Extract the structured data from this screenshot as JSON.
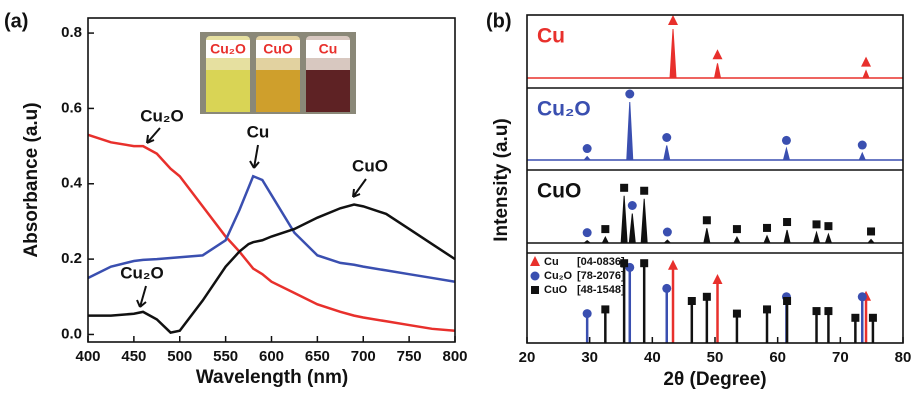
{
  "chart_data": [
    {
      "type": "line",
      "panel_label": "(a)",
      "xlabel": "Wavelength (nm)",
      "ylabel": "Absorbance (a.u)",
      "xlim": [
        400,
        800
      ],
      "xticks": [
        400,
        450,
        500,
        550,
        600,
        650,
        700,
        750,
        800
      ],
      "ylim": [
        -0.02,
        0.84
      ],
      "yticks": [
        {
          "value": 0,
          "label": "0.0"
        },
        {
          "value": 0.2,
          "label": "0.2"
        },
        {
          "value": 0.4,
          "label": "0.4"
        },
        {
          "value": 0.6,
          "label": "0.6"
        },
        {
          "value": 0.8,
          "label": "0.8"
        }
      ],
      "x": [
        400,
        425,
        450,
        460,
        475,
        490,
        500,
        525,
        550,
        565,
        575,
        580,
        590,
        600,
        625,
        650,
        675,
        690,
        700,
        725,
        750,
        775,
        800
      ],
      "series": [
        {
          "name": "Cu₂O",
          "color": "#e8302c",
          "values": [
            0.53,
            0.51,
            0.5,
            0.5,
            0.48,
            0.44,
            0.42,
            0.34,
            0.26,
            0.22,
            0.19,
            0.175,
            0.16,
            0.14,
            0.11,
            0.08,
            0.06,
            0.05,
            0.045,
            0.035,
            0.025,
            0.015,
            0.01
          ]
        },
        {
          "name": "Cu",
          "color": "#3a4fb0",
          "values": [
            0.15,
            0.18,
            0.195,
            0.198,
            0.2,
            0.203,
            0.205,
            0.21,
            0.25,
            0.33,
            0.39,
            0.42,
            0.41,
            0.37,
            0.27,
            0.21,
            0.19,
            0.185,
            0.18,
            0.17,
            0.16,
            0.15,
            0.14
          ]
        },
        {
          "name": "CuO",
          "color": "#111111",
          "values": [
            0.05,
            0.05,
            0.055,
            0.06,
            0.04,
            0.005,
            0.01,
            0.09,
            0.18,
            0.22,
            0.24,
            0.245,
            0.25,
            0.26,
            0.28,
            0.31,
            0.335,
            0.345,
            0.34,
            0.32,
            0.28,
            0.24,
            0.2
          ]
        }
      ],
      "annotations": [
        "Cu₂O"
      ],
      "inset_labels": [
        "Cu₂O",
        "CuO",
        "Cu"
      ]
    },
    {
      "type": "spectrum",
      "panel_label": "(b)",
      "xlabel": "2θ (Degree)",
      "ylabel": "Intensity (a.u)",
      "xlim": [
        20,
        80
      ],
      "xticks": [
        20,
        30,
        40,
        50,
        60,
        70,
        80
      ],
      "patterns": [
        {
          "name": "Cu",
          "color": "#e8302c",
          "x": [
            43.3,
            50.4,
            74.1
          ],
          "values": [
            1,
            0.3,
            0.15
          ],
          "phases": [
            "Cu",
            "Cu",
            "Cu"
          ]
        },
        {
          "name": "Cu₂O",
          "color": "#3a4fb0",
          "x": [
            29.6,
            36.4,
            42.3,
            61.4,
            73.5
          ],
          "values": [
            0.06,
            1,
            0.25,
            0.2,
            0.12
          ],
          "phases": [
            "Cu₂O",
            "Cu₂O",
            "Cu₂O",
            "Cu₂O",
            "Cu₂O"
          ]
        },
        {
          "name": "CuO",
          "color": "#111111",
          "x": [
            29.6,
            32.5,
            35.5,
            36.8,
            38.7,
            42.4,
            48.7,
            53.5,
            58.3,
            61.5,
            66.2,
            68.1,
            74.9
          ],
          "values": [
            0.04,
            0.1,
            0.8,
            0.5,
            0.75,
            0.05,
            0.25,
            0.1,
            0.12,
            0.22,
            0.18,
            0.15,
            0.06
          ],
          "phases": [
            "Cu₂O",
            "CuO",
            "CuO",
            "Cu₂O",
            "CuO",
            "Cu₂O",
            "CuO",
            "CuO",
            "CuO",
            "CuO",
            "CuO",
            "CuO",
            "CuO"
          ]
        }
      ],
      "references": [
        {
          "name": "Cu",
          "card": "[04-0836]",
          "color": "#e8302c",
          "marker": "triangle",
          "x": [
            43.3,
            50.4,
            74.1
          ],
          "values": [
            0.92,
            0.75,
            0.55
          ]
        },
        {
          "name": "Cu₂O",
          "card": "[78-2076]",
          "color": "#3a4fb0",
          "marker": "circle",
          "x": [
            29.6,
            36.4,
            42.3,
            61.4,
            73.5
          ],
          "values": [
            0.35,
            0.9,
            0.65,
            0.55,
            0.55
          ]
        },
        {
          "name": "CuO",
          "card": "[48-1548]",
          "color": "#111111",
          "marker": "square",
          "x": [
            32.5,
            35.5,
            38.7,
            46.3,
            48.7,
            53.5,
            58.3,
            61.5,
            66.2,
            68.1,
            72.4,
            75.2
          ],
          "values": [
            0.4,
            0.95,
            0.95,
            0.5,
            0.55,
            0.35,
            0.4,
            0.5,
            0.38,
            0.38,
            0.3,
            0.3
          ]
        }
      ]
    }
  ]
}
